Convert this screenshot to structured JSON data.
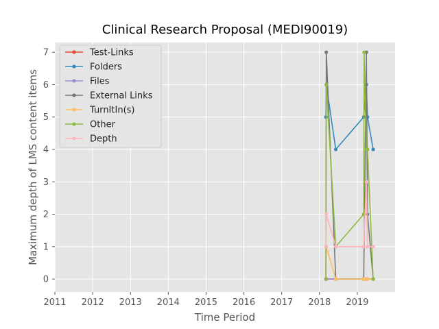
{
  "chart_data": {
    "type": "line",
    "title": "Clinical Research Proposal (MEDI90019)",
    "xlabel": "Time Period",
    "ylabel": "Maximum depth of LMS content items",
    "xlim": [
      2011,
      2020
    ],
    "ylim": [
      -0.4,
      7.3
    ],
    "x_ticks": [
      "2011",
      "2012",
      "2013",
      "2014",
      "2015",
      "2016",
      "2017",
      "2018",
      "2019"
    ],
    "y_ticks": [
      "0",
      "1",
      "2",
      "3",
      "4",
      "5",
      "6",
      "7"
    ],
    "grid": true,
    "legend_position": "upper-left",
    "series": [
      {
        "name": "Test-Links",
        "color": "#e24a33",
        "x": [
          2018.17,
          2018.18,
          2018.43,
          2019.17,
          2019.24,
          2019.27,
          2019.42
        ],
        "y": [
          0,
          0,
          0,
          0,
          0,
          0,
          0
        ]
      },
      {
        "name": "Folders",
        "color": "#348abd",
        "x": [
          2018.17,
          2018.18,
          2018.43,
          2019.17,
          2019.24,
          2019.27,
          2019.42
        ],
        "y": [
          5,
          6,
          4,
          5,
          6,
          5,
          4
        ]
      },
      {
        "name": "Files",
        "color": "#988ed5",
        "x": [
          2018.17,
          2018.18,
          2018.43,
          2019.17,
          2019.24,
          2019.27,
          2019.42
        ],
        "y": [
          0,
          0,
          0,
          0,
          0,
          0,
          0
        ]
      },
      {
        "name": "External Links",
        "color": "#777777",
        "x": [
          2018.17,
          2018.18,
          2018.43,
          2019.17,
          2019.24,
          2019.27,
          2019.42
        ],
        "y": [
          0,
          7,
          0,
          0,
          7,
          2,
          0
        ]
      },
      {
        "name": "TurnItIn(s)",
        "color": "#fbc15e",
        "x": [
          2018.17,
          2018.18,
          2018.43,
          2019.17,
          2019.24,
          2019.27,
          2019.42
        ],
        "y": [
          0,
          1,
          0,
          0,
          0,
          0,
          0
        ]
      },
      {
        "name": "Other",
        "color": "#8eba42",
        "x": [
          2018.17,
          2018.18,
          2018.43,
          2019.17,
          2019.18,
          2019.24,
          2019.27,
          2019.42
        ],
        "y": [
          0,
          6,
          1,
          2,
          7,
          4,
          4,
          0
        ]
      },
      {
        "name": "Depth",
        "color": "#ffb5b8",
        "x": [
          2018.17,
          2018.18,
          2018.43,
          2019.17,
          2019.24,
          2019.27,
          2019.42
        ],
        "y": [
          1,
          2,
          1,
          1,
          3,
          1,
          1
        ]
      }
    ]
  }
}
